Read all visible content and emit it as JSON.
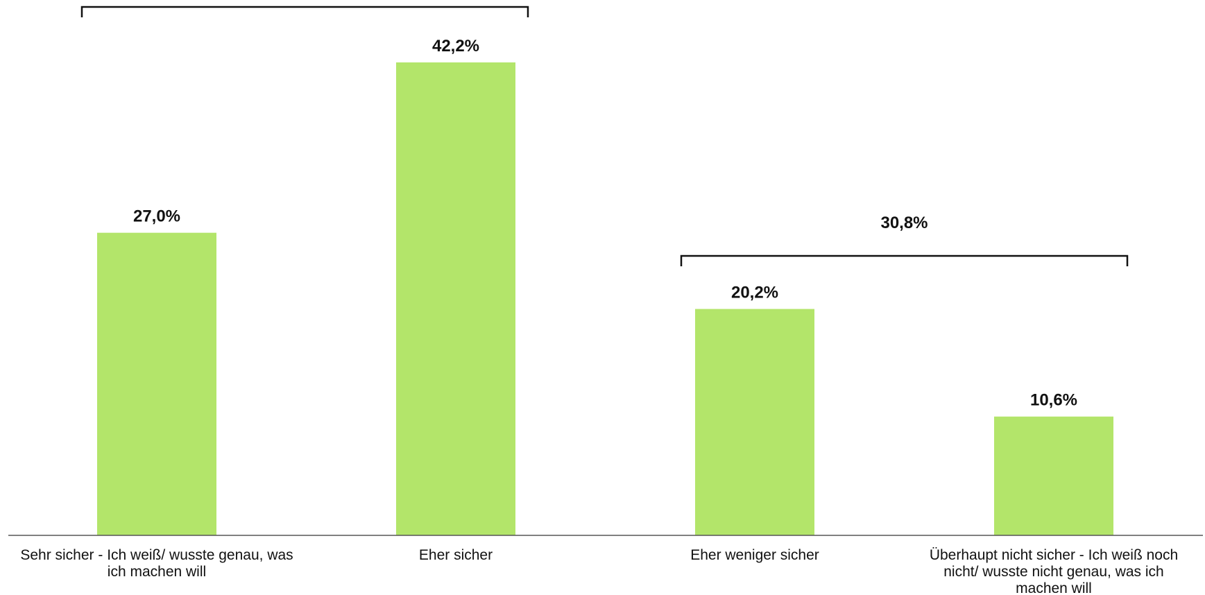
{
  "chart_data": {
    "type": "bar",
    "categories": [
      "Sehr sicher - Ich weiß/ wusste genau, was ich machen will",
      "Eher sicher",
      "Eher weniger sicher",
      "Überhaupt nicht sicher - Ich weiß noch nicht/ wusste nicht genau, was ich machen will"
    ],
    "category_lines": [
      [
        "Sehr sicher - Ich weiß/ wusste genau, was",
        "ich machen will"
      ],
      [
        "Eher sicher"
      ],
      [
        "Eher weniger sicher"
      ],
      [
        "Überhaupt nicht sicher - Ich weiß noch",
        "nicht/ wusste nicht genau, was ich",
        "machen will"
      ]
    ],
    "values": [
      27.0,
      42.2,
      20.2,
      10.6
    ],
    "value_labels": [
      "27,0%",
      "42,2%",
      "20,2%",
      "10,6%"
    ],
    "groups": [
      {
        "label": "",
        "from": 0,
        "to": 1
      },
      {
        "label": "30,8%",
        "from": 2,
        "to": 3
      }
    ],
    "ylim": [
      0,
      42.2
    ],
    "grid": false,
    "legend": "none",
    "bar_color": "#b3e56a",
    "axis_color": "#555555",
    "text_color": "#111111"
  }
}
